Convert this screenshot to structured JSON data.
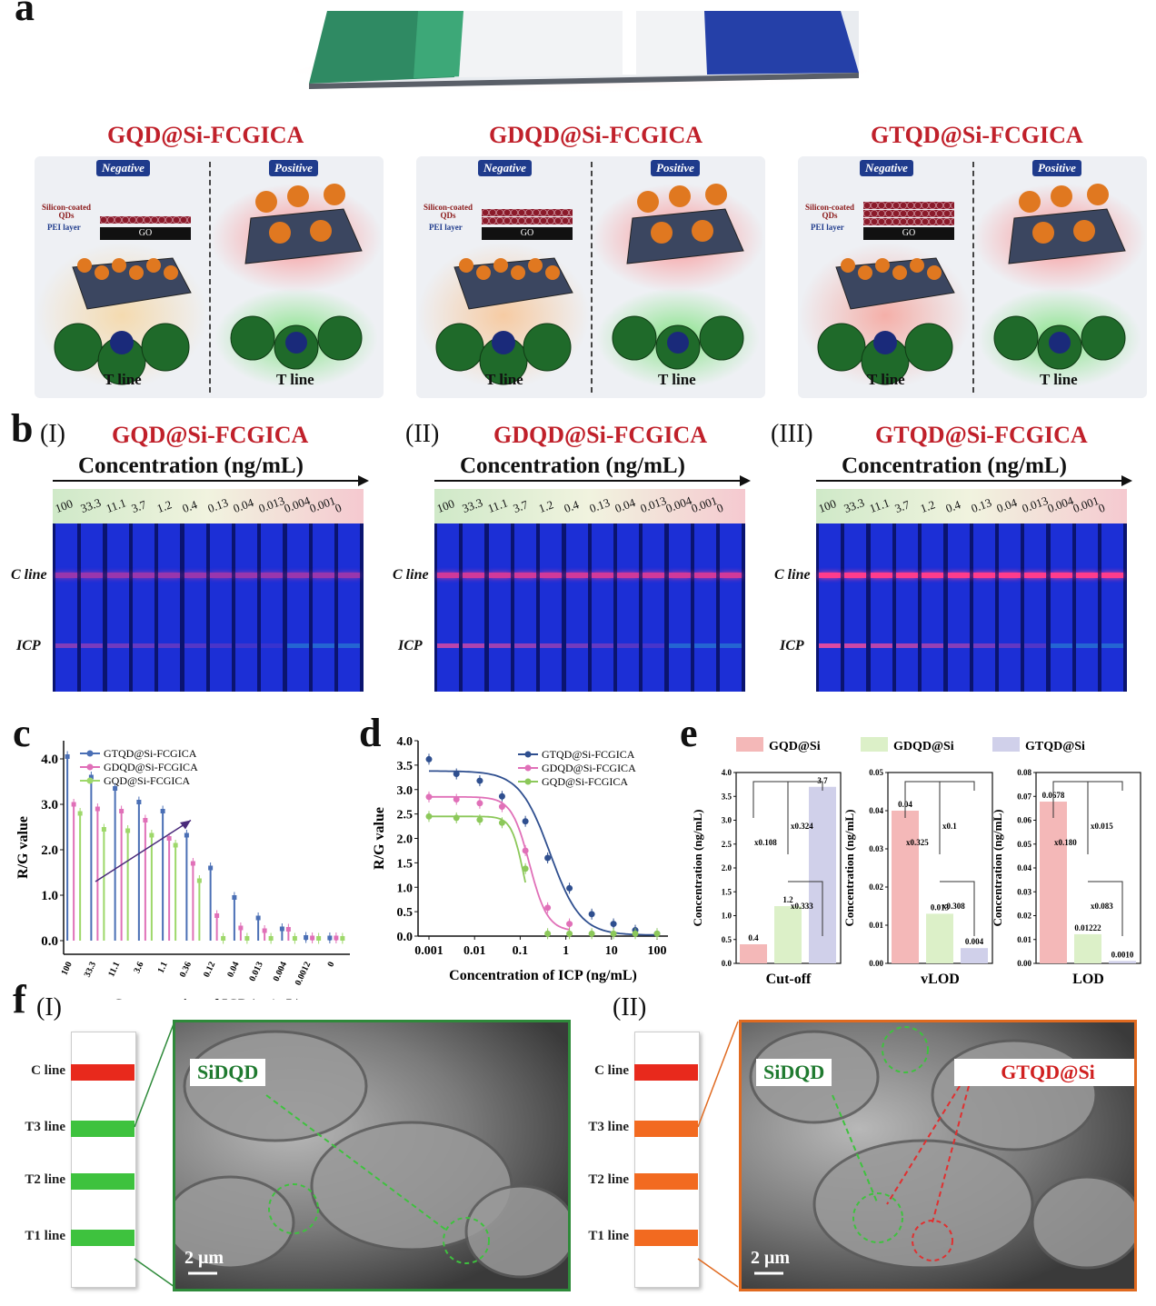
{
  "panel_labels": {
    "a": "a",
    "b": "b",
    "c": "c",
    "d": "d",
    "e": "e",
    "f": "f"
  },
  "panel_a": {
    "assays": [
      {
        "title": "GQD@Si-FCGICA",
        "negative": "Negative",
        "positive": "Positive",
        "qd_label": "Silicon-coated QDs",
        "pei_label": "PEI layer",
        "go": "GO",
        "tline": "T line"
      },
      {
        "title": "GDQD@Si-FCGICA",
        "negative": "Negative",
        "positive": "Positive",
        "qd_label": "Silicon-coated QDs",
        "pei_label": "PEI layer",
        "go": "GO",
        "tline": "T line"
      },
      {
        "title": "GTQD@Si-FCGICA",
        "negative": "Negative",
        "positive": "Positive",
        "qd_label": "Silicon-coated QDs",
        "pei_label": "PEI layer",
        "go": "GO",
        "tline": "T line"
      }
    ]
  },
  "panel_b": {
    "groups": [
      {
        "roman": "(I)",
        "title": "GQD@Si-FCGICA"
      },
      {
        "roman": "(II)",
        "title": "GDQD@Si-FCGICA"
      },
      {
        "roman": "(III)",
        "title": "GTQD@Si-FCGICA"
      }
    ],
    "axis_title": "Concentration (ng/mL)",
    "concentrations": [
      "100",
      "33.3",
      "11.1",
      "3.7",
      "1.2",
      "0.4",
      "0.13",
      "0.04",
      "0.013",
      "0.004",
      "0.001",
      "0"
    ],
    "c_line_label": "C line",
    "icp_label": "ICP",
    "colors": {
      "strip": "#1c2fd6",
      "c_line": "#ff3c8c",
      "t_line": "#ff4f9a",
      "bg": "#0a1470"
    }
  },
  "panel_c": {
    "chart_data": {
      "type": "bar",
      "title": "",
      "xlabel": "Concentration of ICP (ng/mL)",
      "ylabel": "R/G value",
      "ylim": [
        -0.3,
        4.4
      ],
      "yticks": [
        "0.0",
        "1.0",
        "2.0",
        "3.0",
        "4.0"
      ],
      "categories": [
        "100",
        "33.3",
        "11.1",
        "3.6",
        "1.1",
        "0.36",
        "0.12",
        "0.04",
        "0.013",
        "0.004",
        "0.0012",
        "0"
      ],
      "series": [
        {
          "name": "GTQD@Si-FCGICA",
          "color": "#4a6fb5",
          "values": [
            4.05,
            3.6,
            3.35,
            3.05,
            2.85,
            2.32,
            1.6,
            0.95,
            0.5,
            0.26,
            0.07,
            0.06
          ]
        },
        {
          "name": "GDQD@Si-FCGICA",
          "color": "#e070b8",
          "values": [
            3.0,
            2.9,
            2.85,
            2.65,
            2.25,
            1.7,
            0.55,
            0.28,
            0.22,
            0.25,
            0.06,
            0.06
          ]
        },
        {
          "name": "GQD@Si-FCGICA",
          "color": "#9ed86a",
          "values": [
            2.8,
            2.45,
            2.42,
            2.32,
            2.1,
            1.32,
            0.05,
            0.05,
            0.05,
            0.05,
            0.05,
            0.05
          ]
        }
      ]
    }
  },
  "panel_d": {
    "chart_data": {
      "type": "scatter",
      "xlabel": "Concentration of ICP (ng/mL)",
      "ylabel": "R/G value",
      "xscale": "log",
      "xticks": [
        "0.001",
        "0.01",
        "0.1",
        "1",
        "10",
        "100"
      ],
      "yticks": [
        "0.0",
        "0.5",
        "1.0",
        "1.5",
        "2.0",
        "2.5",
        "3.0",
        "3.5",
        "4.0"
      ],
      "ylim": [
        0,
        4
      ],
      "series": [
        {
          "name": "GTQD@Si-FCGICA",
          "color": "#2f4f8f",
          "x": [
            0.001,
            0.004,
            0.013,
            0.04,
            0.13,
            0.4,
            1.2,
            3.7,
            11.1,
            33.3,
            100
          ],
          "y": [
            3.62,
            3.32,
            3.18,
            2.86,
            2.35,
            1.6,
            0.98,
            0.45,
            0.25,
            0.12,
            0.05
          ]
        },
        {
          "name": "GDQD@Si-FCGICA",
          "color": "#e070b8",
          "x": [
            0.001,
            0.004,
            0.013,
            0.04,
            0.13,
            0.4,
            1.2
          ],
          "y": [
            2.85,
            2.8,
            2.72,
            2.65,
            1.75,
            0.58,
            0.25
          ]
        },
        {
          "name": "GQD@Si-FCGICA",
          "color": "#8cc85a",
          "x": [
            0.001,
            0.004,
            0.013,
            0.04,
            0.13,
            0.4,
            1.2,
            3.7,
            11.1,
            33.3,
            100
          ],
          "y": [
            2.45,
            2.42,
            2.38,
            2.32,
            1.38,
            0.05,
            0.05,
            0.05,
            0.05,
            0.05,
            0.05
          ]
        }
      ]
    }
  },
  "panel_e": {
    "legend": [
      {
        "name": "GQD@Si",
        "color": "#f4b8b8"
      },
      {
        "name": "GDQD@Si",
        "color": "#dcf0c8"
      },
      {
        "name": "GTQD@Si",
        "color": "#d0d0ea"
      }
    ],
    "chart_data": [
      {
        "type": "bar",
        "xlabel": "Cut-off",
        "ylabel": "Concentration (ng/mL)",
        "ylim": [
          0,
          4.0
        ],
        "yticks": [
          "0.0",
          "0.5",
          "1.0",
          "1.5",
          "2.0",
          "2.5",
          "3.0",
          "3.5",
          "4.0"
        ],
        "values": [
          0.4,
          1.2,
          3.7
        ],
        "value_labels": [
          "0.4",
          "1.2",
          "3.7"
        ],
        "ratios": [
          "x0.108",
          "x0.324",
          "x0.333"
        ]
      },
      {
        "type": "bar",
        "xlabel": "vLOD",
        "ylabel": "Concentration (ng/mL)",
        "ylim": [
          0,
          0.05
        ],
        "yticks": [
          "0.00",
          "0.01",
          "0.02",
          "0.03",
          "0.04",
          "0.05"
        ],
        "values": [
          0.04,
          0.013,
          0.004
        ],
        "value_labels": [
          "0.04",
          "0.013",
          "0.004"
        ],
        "ratios": [
          "x0.325",
          "x0.1",
          "x0.308"
        ]
      },
      {
        "type": "bar",
        "xlabel": "LOD",
        "ylabel": "Concentration (ng/mL)",
        "ylim": [
          0,
          0.08
        ],
        "yticks": [
          "0.00",
          "0.01",
          "0.02",
          "0.03",
          "0.04",
          "0.05",
          "0.06",
          "0.07",
          "0.08"
        ],
        "values": [
          0.0678,
          0.01222,
          0.001
        ],
        "value_labels": [
          "0.0678",
          "0.01222",
          "0.0010"
        ],
        "ratios": [
          "x0.180",
          "x0.015",
          "x0.083"
        ]
      }
    ]
  },
  "panel_f": {
    "groups": [
      {
        "roman": "(I)",
        "lines": [
          "C line",
          "T3 line",
          "T2 line",
          "T1 line"
        ],
        "line_colors": [
          "#e8291c",
          "#3ec23e",
          "#3ec23e",
          "#3ec23e"
        ],
        "tag1": "SiDQD",
        "tag2": "",
        "scale": "2 μm",
        "frame_color": "#2e8a3a"
      },
      {
        "roman": "(II)",
        "lines": [
          "C line",
          "T3 line",
          "T2 line",
          "T1 line"
        ],
        "line_colors": [
          "#e8291c",
          "#f26a20",
          "#f26a20",
          "#f26a20"
        ],
        "tag1": "SiDQD",
        "tag2": "GTQD@Si",
        "scale": "2 μm",
        "frame_color": "#e06a20"
      }
    ]
  }
}
